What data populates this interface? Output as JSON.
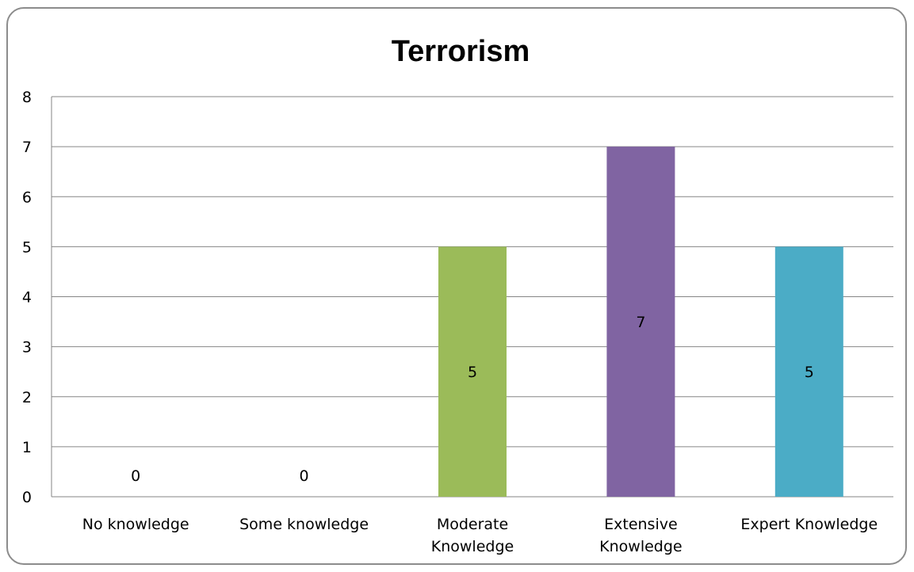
{
  "chart_data": {
    "type": "bar",
    "title": "Terrorism",
    "xlabel": "",
    "ylabel": "",
    "categories": [
      [
        "No knowledge"
      ],
      [
        "Some knowledge"
      ],
      [
        "Moderate",
        "Knowledge"
      ],
      [
        "Extensive",
        "Knowledge"
      ],
      [
        "Expert Knowledge"
      ]
    ],
    "values": [
      0,
      0,
      5,
      7,
      5
    ],
    "data_labels": [
      "0",
      "0",
      "5",
      "7",
      "5"
    ],
    "bar_colors": [
      "#9bbb59",
      "#9bbb59",
      "#9bbb59",
      "#8064a2",
      "#4bacc6"
    ],
    "ylim": [
      0,
      8
    ],
    "yticks": [
      0,
      1,
      2,
      3,
      4,
      5,
      6,
      7,
      8
    ],
    "grid": true,
    "legend": "none"
  }
}
